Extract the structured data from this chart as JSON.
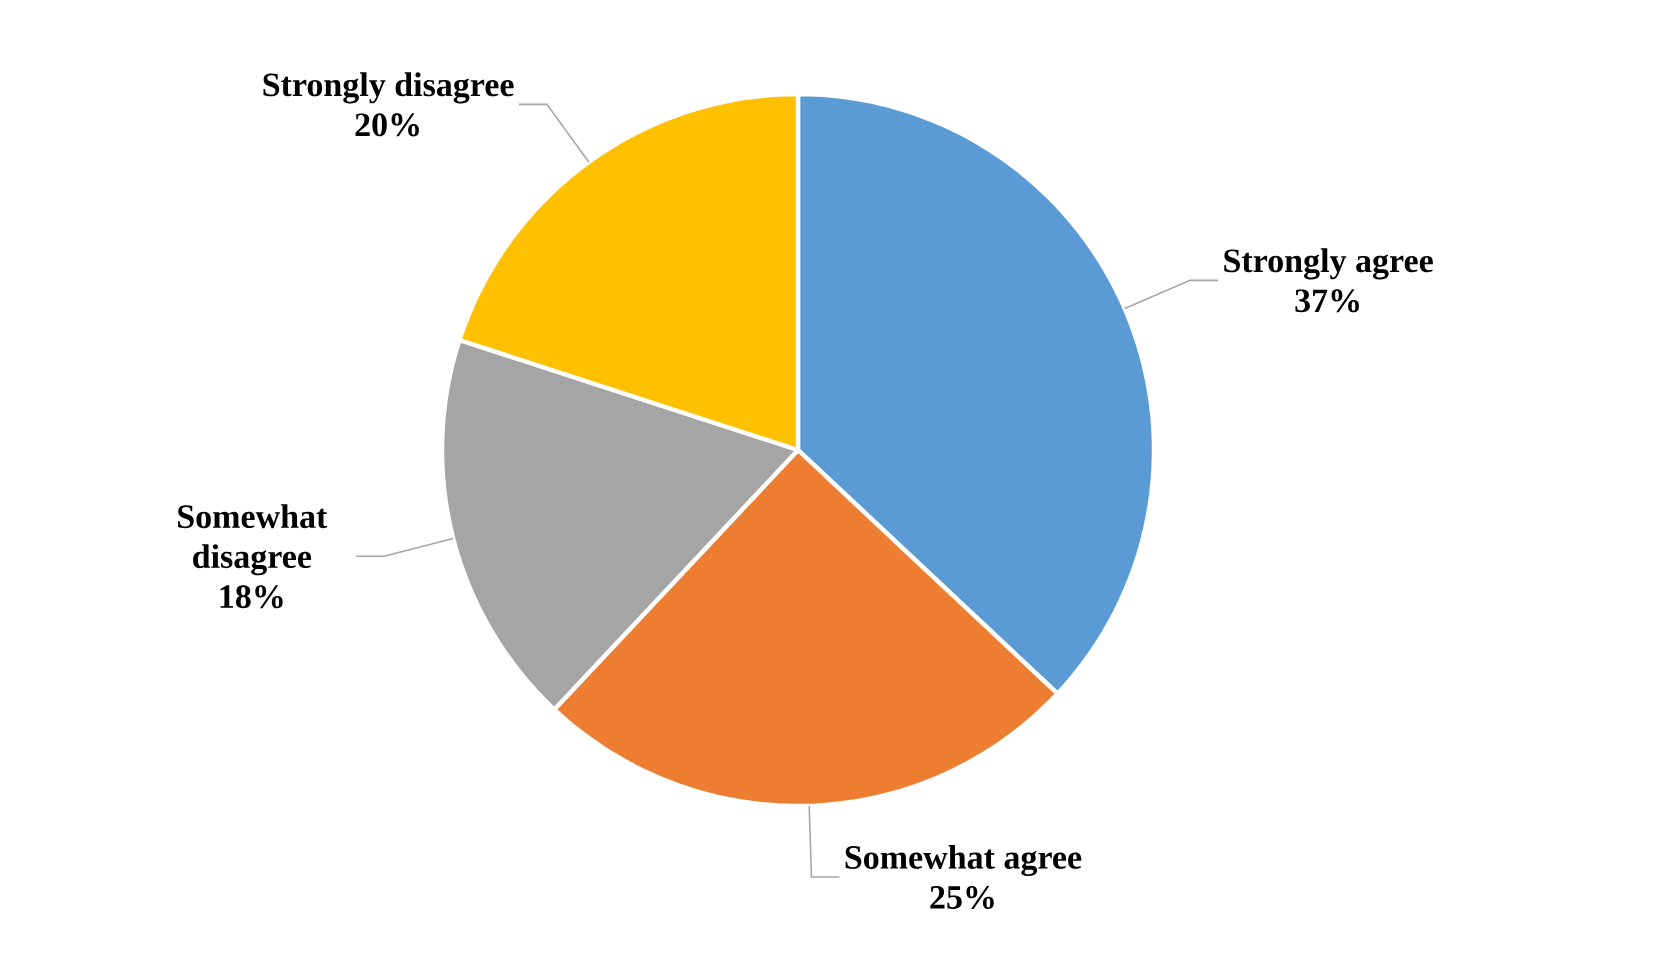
{
  "chart_data": {
    "type": "pie",
    "categories": [
      "Strongly agree",
      "Somewhat agree",
      "Somewhat disagree",
      "Strongly disagree"
    ],
    "values": [
      37,
      25,
      18,
      20
    ],
    "value_labels": [
      "37%",
      "25%",
      "18%",
      "20%"
    ],
    "colors": [
      "#5b9bd5",
      "#ed7d31",
      "#a5a5a5",
      "#ffc000"
    ]
  }
}
